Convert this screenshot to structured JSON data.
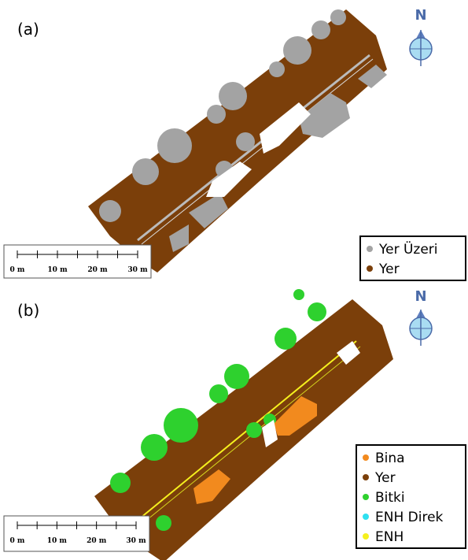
{
  "panels": [
    {
      "label": "(a)",
      "north": "N",
      "scale_bar": [
        "0 m",
        "10 m",
        "20 m",
        "30 m"
      ],
      "legend": [
        {
          "name": "Yer Üzeri",
          "color": "#a3a3a3"
        },
        {
          "name": "Yer",
          "color": "#7b3f0a"
        }
      ]
    },
    {
      "label": "(b)",
      "north": "N",
      "scale_bar": [
        "0 m",
        "10 m",
        "20 m",
        "30 m"
      ],
      "legend": [
        {
          "name": "Bina",
          "color": "#f28a1e"
        },
        {
          "name": "Yer",
          "color": "#7b3f0a"
        },
        {
          "name": "Bitki",
          "color": "#2ed12e"
        },
        {
          "name": "ENH Direk",
          "color": "#2ee0f0"
        },
        {
          "name": "ENH",
          "color": "#f5f01e"
        }
      ]
    }
  ]
}
